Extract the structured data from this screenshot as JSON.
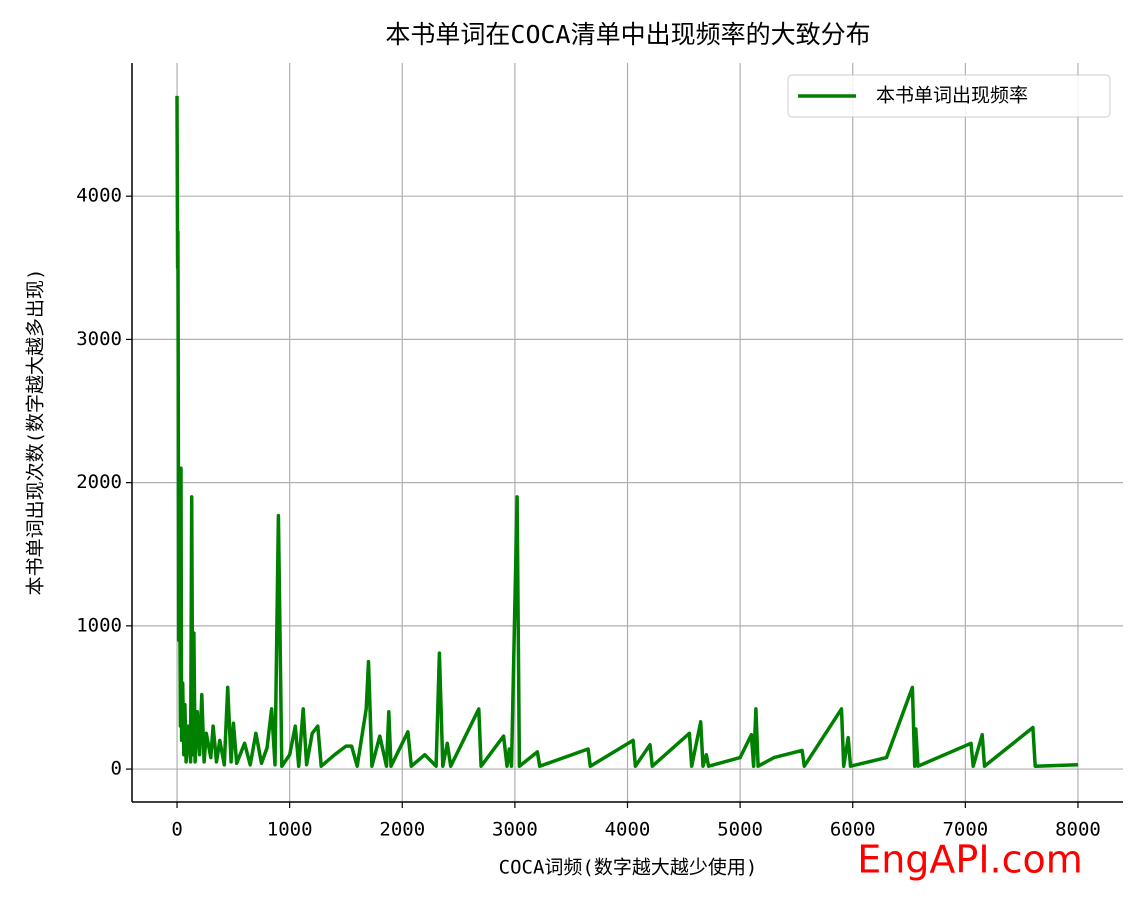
{
  "chart_data": {
    "type": "line",
    "title": "本书单词在COCA清单中出现频率的大致分布",
    "x_label": "COCA词频(数字越大越少使用)",
    "y_label": "本书单词出现次数(数字越大越多出现)",
    "watermark": "EngAPI.com",
    "x": [
      0,
      5,
      8,
      10,
      15,
      20,
      25,
      30,
      35,
      40,
      50,
      60,
      70,
      80,
      100,
      120,
      130,
      140,
      150,
      160,
      180,
      200,
      220,
      240,
      260,
      300,
      320,
      350,
      380,
      420,
      450,
      480,
      500,
      530,
      600,
      650,
      700,
      750,
      800,
      840,
      870,
      900,
      930,
      1000,
      1050,
      1080,
      1120,
      1150,
      1200,
      1250,
      1280,
      1400,
      1500,
      1550,
      1600,
      1680,
      1700,
      1730,
      1800,
      1860,
      1880,
      1900,
      2050,
      2080,
      2200,
      2300,
      2330,
      2360,
      2400,
      2430,
      2680,
      2700,
      2900,
      2930,
      2950,
      2970,
      3020,
      3040,
      3200,
      3220,
      3650,
      3670,
      4050,
      4070,
      4200,
      4220,
      4550,
      4570,
      4650,
      4670,
      4700,
      4720,
      5000,
      5100,
      5120,
      5140,
      5160,
      5300,
      5550,
      5570,
      5900,
      5920,
      5960,
      5980,
      6300,
      6530,
      6550,
      6560,
      6580,
      7050,
      7070,
      7150,
      7170,
      7600,
      7620,
      8000
    ],
    "series": [
      {
        "name": "本书单词出现频率",
        "color": "#008000",
        "values": [
          4700,
          3500,
          3750,
          2900,
          900,
          2000,
          1000,
          300,
          2100,
          200,
          600,
          100,
          450,
          50,
          300,
          50,
          1900,
          100,
          950,
          50,
          400,
          100,
          520,
          50,
          250,
          80,
          300,
          50,
          200,
          30,
          570,
          50,
          320,
          40,
          180,
          30,
          250,
          40,
          150,
          420,
          30,
          1770,
          20,
          100,
          300,
          20,
          420,
          30,
          250,
          300,
          20,
          100,
          160,
          160,
          20,
          420,
          750,
          20,
          230,
          20,
          400,
          20,
          260,
          20,
          100,
          20,
          810,
          20,
          180,
          20,
          420,
          20,
          230,
          20,
          140,
          20,
          1900,
          20,
          120,
          20,
          140,
          20,
          200,
          20,
          170,
          20,
          250,
          20,
          330,
          20,
          100,
          20,
          80,
          240,
          20,
          420,
          20,
          80,
          130,
          20,
          420,
          20,
          220,
          20,
          80,
          570,
          20,
          280,
          20,
          180,
          20,
          240,
          20,
          290,
          20,
          30
        ]
      }
    ],
    "xlim": [
      -400,
      8400
    ],
    "ylim": [
      -230,
      4930
    ],
    "xticks": [
      0,
      1000,
      2000,
      3000,
      4000,
      5000,
      6000,
      7000,
      8000
    ],
    "yticks": [
      0,
      1000,
      2000,
      3000,
      4000
    ],
    "grid": true,
    "legend": "upper right"
  }
}
